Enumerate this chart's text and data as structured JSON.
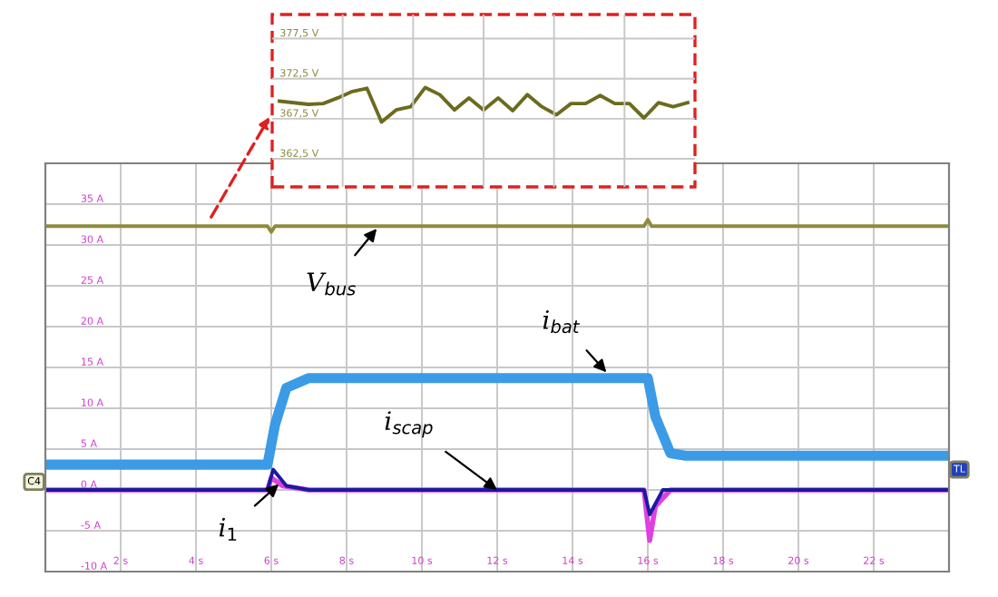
{
  "chart_data": [
    {
      "type": "line",
      "xlim": [
        0,
        24
      ],
      "ylim": [
        -10,
        40
      ],
      "xticks": [
        {
          "value": 2,
          "label": "2 s"
        },
        {
          "value": 4,
          "label": "4 s"
        },
        {
          "value": 6,
          "label": "6 s"
        },
        {
          "value": 8,
          "label": "8 s"
        },
        {
          "value": 10,
          "label": "10 s"
        },
        {
          "value": 12,
          "label": "12 s"
        },
        {
          "value": 14,
          "label": "14 s"
        },
        {
          "value": 16,
          "label": "16 s"
        },
        {
          "value": 18,
          "label": "18 s"
        },
        {
          "value": 20,
          "label": "20 s"
        },
        {
          "value": 22,
          "label": "22 s"
        }
      ],
      "yticks": [
        {
          "value": -10,
          "label": "-10 A"
        },
        {
          "value": -5,
          "label": "-5 A"
        },
        {
          "value": 0,
          "label": "0 A"
        },
        {
          "value": 5,
          "label": "5 A"
        },
        {
          "value": 10,
          "label": "10 A"
        },
        {
          "value": 15,
          "label": "15 A"
        },
        {
          "value": 20,
          "label": "20 A"
        },
        {
          "value": 25,
          "label": "25 A"
        },
        {
          "value": 30,
          "label": "30 A"
        },
        {
          "value": 35,
          "label": "35 A"
        }
      ],
      "grid": true,
      "series": [
        {
          "color": "#8c8c3c",
          "x": [
            0,
            5.9,
            6.0,
            6.1,
            15.9,
            16.0,
            16.1,
            24
          ],
          "values": [
            32.3,
            32.3,
            31.6,
            32.3,
            32.3,
            33.1,
            32.3,
            32.3
          ]
        },
        {
          "color": "#3b9be6",
          "x": [
            0,
            5.9,
            6.1,
            6.4,
            7,
            16,
            16.2,
            16.6,
            17,
            24
          ],
          "values": [
            3.1,
            3.1,
            8,
            12.5,
            13.7,
            13.7,
            9,
            4.5,
            4.2,
            4.2
          ]
        },
        {
          "color": "#e040e0",
          "x": [
            0,
            5.9,
            6.0,
            6.3,
            7,
            15.9,
            16.05,
            16.2,
            16.6,
            24
          ],
          "values": [
            0,
            0,
            1.5,
            0.5,
            0,
            0,
            -6.2,
            -2,
            0,
            0
          ]
        },
        {
          "color": "#1a1aa0",
          "x": [
            0,
            5.9,
            6.05,
            6.4,
            7,
            15.9,
            16.05,
            16.4,
            24
          ],
          "values": [
            0,
            0,
            2.5,
            0.5,
            0,
            0,
            -3,
            0,
            0
          ]
        }
      ],
      "annotations": [
        {
          "text": "V$_{bus}$",
          "x": 8.8,
          "y": 32
        },
        {
          "text": "i$_{bat}$",
          "x": 14.9,
          "y": 14.4
        },
        {
          "text": "i$_{scap}$",
          "x": 12,
          "y": 0
        },
        {
          "text": "i$_{1}$",
          "x": 6.2,
          "y": 0.7
        },
        "C4",
        "TL"
      ]
    },
    {
      "type": "line",
      "grid": true,
      "ylim": [
        359,
        380.5
      ],
      "yticks": [
        {
          "value": 362.5,
          "label": "362,5 V"
        },
        {
          "value": 367.5,
          "label": "367,5 V"
        },
        {
          "value": 372.5,
          "label": "372,5 V"
        },
        {
          "value": 377.5,
          "label": "377,5 V"
        }
      ],
      "categories": [
        null,
        null,
        null,
        null,
        null,
        null,
        null,
        null,
        null,
        null,
        null,
        null,
        null,
        null,
        null,
        null,
        null,
        null,
        null,
        null,
        null,
        null,
        null,
        null,
        null,
        null,
        null,
        null,
        null
      ],
      "series": [
        {
          "color": "#6b6b1e",
          "values": [
            369.7,
            369.5,
            369.3,
            369.4,
            370.1,
            370.9,
            371.3,
            367.1,
            368.6,
            369.0,
            371.4,
            370.5,
            368.6,
            370.1,
            368.6,
            370.1,
            368.5,
            370.5,
            369.0,
            368.0,
            369.4,
            369.4,
            370.4,
            369.4,
            369.4,
            367.6,
            369.5,
            369.0,
            369.5
          ]
        }
      ]
    }
  ]
}
